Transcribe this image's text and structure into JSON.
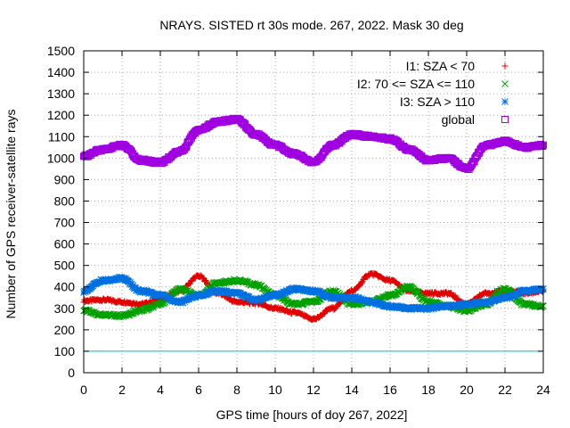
{
  "chart_data": {
    "type": "scatter",
    "title": "NRAYS. SISTED rt 30s mode. 267, 2022. Mask 30 deg",
    "xlabel": "GPS time [hours of doy 267, 2022]",
    "ylabel": "Number of GPS receiver-satellite rays",
    "xlim": [
      0,
      24
    ],
    "ylim": [
      0,
      1500
    ],
    "xticks": [
      0,
      2,
      4,
      6,
      8,
      10,
      12,
      14,
      16,
      18,
      20,
      22,
      24
    ],
    "yticks": [
      0,
      100,
      200,
      300,
      400,
      500,
      600,
      700,
      800,
      900,
      1000,
      1100,
      1200,
      1300,
      1400,
      1500
    ],
    "grid": true,
    "legend_position": "top-right",
    "reference_line": {
      "y": 100,
      "color": "#00c0c0"
    },
    "series": [
      {
        "name": "I1: SZA < 70",
        "marker": "plus",
        "color": "#e00000",
        "x": [
          0,
          1,
          2,
          3,
          4,
          5,
          6,
          7,
          8,
          9,
          10,
          11,
          12,
          13,
          14,
          15,
          16,
          17,
          18,
          19,
          20,
          21,
          22,
          23,
          24
        ],
        "values": [
          335,
          340,
          330,
          320,
          340,
          380,
          450,
          370,
          330,
          325,
          300,
          280,
          250,
          300,
          380,
          460,
          430,
          380,
          370,
          370,
          320,
          370,
          380,
          370,
          380
        ]
      },
      {
        "name": "I2: 70 <= SZA <= 110",
        "marker": "x",
        "color": "#00a000",
        "x": [
          0,
          1,
          2,
          3,
          4,
          5,
          6,
          7,
          8,
          9,
          10,
          11,
          12,
          13,
          14,
          15,
          16,
          17,
          18,
          19,
          20,
          21,
          22,
          23,
          24
        ],
        "values": [
          290,
          270,
          265,
          290,
          320,
          390,
          360,
          420,
          430,
          410,
          360,
          320,
          330,
          380,
          320,
          330,
          360,
          400,
          330,
          310,
          290,
          320,
          390,
          320,
          310
        ]
      },
      {
        "name": "I3: SZA > 110",
        "marker": "asterisk",
        "color": "#0070e0",
        "x": [
          0,
          1,
          2,
          3,
          4,
          5,
          6,
          7,
          8,
          9,
          10,
          11,
          12,
          13,
          14,
          15,
          16,
          17,
          18,
          19,
          20,
          21,
          22,
          23,
          24
        ],
        "values": [
          380,
          430,
          440,
          380,
          360,
          330,
          360,
          380,
          370,
          340,
          360,
          390,
          380,
          350,
          350,
          330,
          310,
          300,
          300,
          310,
          320,
          330,
          350,
          380,
          390
        ]
      },
      {
        "name": "global",
        "marker": "square",
        "color": "#a000e0",
        "x": [
          0,
          1,
          2,
          3,
          4,
          5,
          6,
          7,
          8,
          9,
          10,
          11,
          12,
          13,
          14,
          15,
          16,
          17,
          18,
          19,
          20,
          21,
          22,
          23,
          24
        ],
        "values": [
          1010,
          1040,
          1060,
          990,
          980,
          1030,
          1130,
          1170,
          1180,
          1110,
          1060,
          1020,
          980,
          1060,
          1110,
          1100,
          1090,
          1040,
          990,
          1000,
          950,
          1060,
          1080,
          1050,
          1060
        ]
      }
    ]
  }
}
